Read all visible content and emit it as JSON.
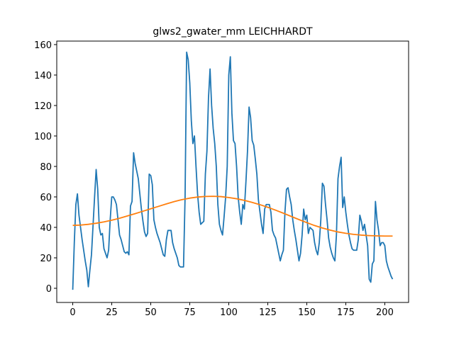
{
  "chart_data": {
    "type": "line",
    "title": "glws2_gwater_mm LEICHHARDT",
    "xlim": [
      -10.25,
      215.25
    ],
    "xticks": [
      0,
      25,
      50,
      75,
      100,
      125,
      150,
      175,
      200
    ],
    "ylim": [
      -9.3,
      162.3
    ],
    "yticks": [
      0,
      20,
      40,
      60,
      80,
      100,
      120,
      140,
      160
    ],
    "series": [
      {
        "color": "#1f77b4",
        "values": [
          -1,
          30,
          55,
          62,
          48,
          40,
          32,
          25,
          18,
          12,
          1,
          12,
          22,
          41,
          60,
          78,
          65,
          40,
          35,
          36,
          26,
          23,
          20,
          25,
          45,
          60,
          60,
          58,
          55,
          45,
          35,
          32,
          28,
          24,
          23,
          24,
          22,
          54,
          57,
          89,
          82,
          77,
          72,
          62,
          52,
          44,
          37,
          34,
          36,
          75,
          74,
          68,
          45,
          40,
          36,
          33,
          30,
          26,
          22,
          21,
          32,
          38,
          38,
          38,
          30,
          26,
          23,
          20,
          15,
          14,
          14,
          14,
          60,
          155,
          150,
          135,
          110,
          95,
          100,
          80,
          62,
          50,
          42,
          43,
          44,
          75,
          90,
          125,
          144,
          120,
          105,
          95,
          80,
          55,
          42,
          38,
          35,
          47,
          60,
          80,
          140,
          152,
          115,
          97,
          95,
          80,
          60,
          50,
          42,
          55,
          52,
          70,
          90,
          119,
          112,
          97,
          94,
          85,
          75,
          58,
          50,
          42,
          36,
          52,
          55,
          55,
          55,
          50,
          38,
          35,
          33,
          28,
          23,
          18,
          22,
          25,
          50,
          65,
          66,
          60,
          55,
          45,
          38,
          32,
          25,
          18,
          23,
          35,
          52,
          45,
          48,
          36,
          40,
          39,
          38,
          30,
          25,
          22,
          30,
          45,
          69,
          67,
          55,
          45,
          33,
          27,
          23,
          20,
          18,
          35,
          72,
          80,
          86,
          53,
          60,
          50,
          42,
          35,
          30,
          26,
          25,
          25,
          25,
          32,
          48,
          44,
          38,
          42,
          35,
          28,
          6,
          4,
          16,
          18,
          57,
          45,
          38,
          28,
          30,
          30,
          28,
          18,
          14,
          11,
          8,
          6
        ]
      },
      {
        "color": "#ff7f0e",
        "x": [
          0,
          5,
          10,
          15,
          20,
          25,
          30,
          35,
          40,
          45,
          50,
          55,
          60,
          65,
          70,
          75,
          80,
          85,
          90,
          95,
          100,
          105,
          110,
          115,
          120,
          125,
          130,
          135,
          140,
          145,
          150,
          155,
          160,
          165,
          170,
          175,
          180,
          185,
          190,
          195,
          200,
          205
        ],
        "values": [
          41.3,
          41.5,
          42,
          42.7,
          43.6,
          44.7,
          46,
          47.5,
          49,
          50.6,
          52.2,
          53.8,
          55.4,
          56.9,
          58.2,
          59.2,
          59.9,
          60.3,
          60.4,
          60.2,
          59.6,
          58.8,
          57.7,
          56.4,
          54.9,
          53.2,
          51.3,
          49.3,
          47.2,
          45.1,
          43.1,
          41.2,
          39.6,
          38.2,
          37,
          36.1,
          35.4,
          34.9,
          34.6,
          34.4,
          34.3,
          34.3
        ]
      }
    ]
  }
}
